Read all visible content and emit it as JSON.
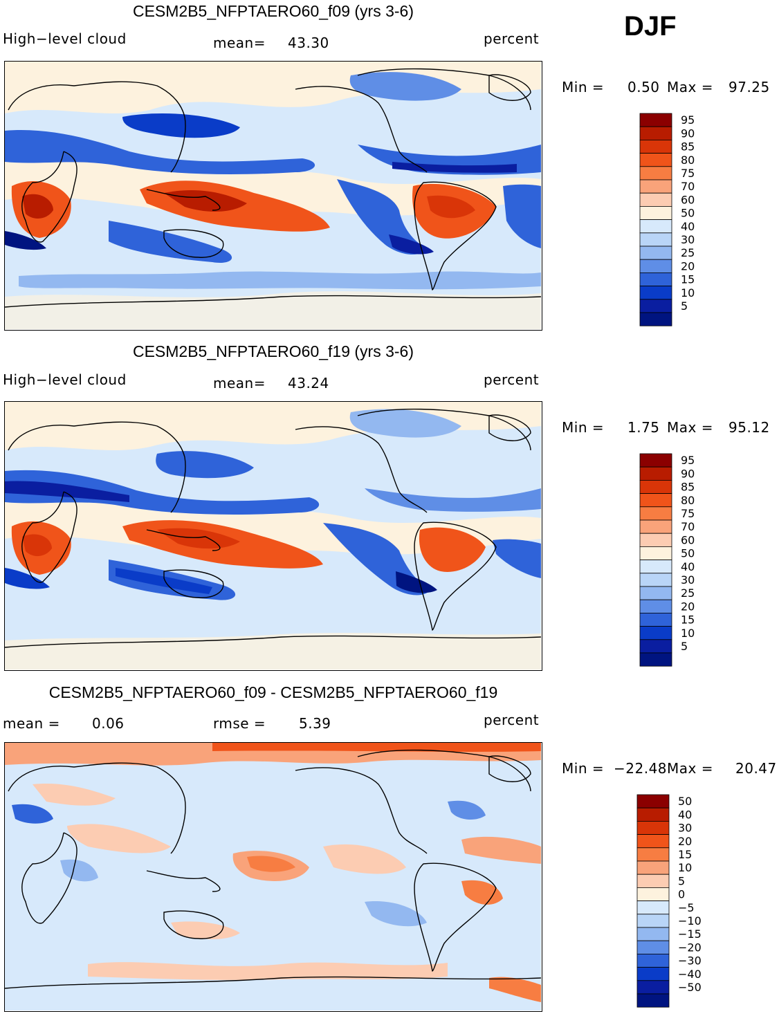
{
  "season": "DJF",
  "panels": [
    {
      "title": "CESM2B5_NFPTAERO60_f09 (yrs 3-6)",
      "left_label": "High−level cloud",
      "stat1_label": "mean=",
      "stat1_value": "43.30",
      "stat2_label": "",
      "stat2_value": "",
      "units": "percent",
      "min_label": "Min =",
      "min_value": "0.50",
      "max_label": "Max =",
      "max_value": "97.25",
      "colorbar": {
        "levels": [
          "95",
          "90",
          "85",
          "80",
          "75",
          "70",
          "60",
          "50",
          "40",
          "30",
          "25",
          "20",
          "15",
          "10",
          "5"
        ],
        "colors": [
          "#8b0000",
          "#b81c00",
          "#d93508",
          "#f0541a",
          "#f77d42",
          "#f9a37a",
          "#fcccb2",
          "#fdf2de",
          "#d7e9fb",
          "#b9d5f7",
          "#93b8f0",
          "#5f8ee6",
          "#2f63d9",
          "#0a3cc8",
          "#0a1ea0",
          "#001480"
        ]
      }
    },
    {
      "title": "CESM2B5_NFPTAERO60_f19 (yrs 3-6)",
      "left_label": "High−level cloud",
      "stat1_label": "mean=",
      "stat1_value": "43.24",
      "stat2_label": "",
      "stat2_value": "",
      "units": "percent",
      "min_label": "Min =",
      "min_value": "1.75",
      "max_label": "Max =",
      "max_value": "95.12",
      "colorbar": {
        "levels": [
          "95",
          "90",
          "85",
          "80",
          "75",
          "70",
          "60",
          "50",
          "40",
          "30",
          "25",
          "20",
          "15",
          "10",
          "5"
        ],
        "colors": [
          "#8b0000",
          "#b81c00",
          "#d93508",
          "#f0541a",
          "#f77d42",
          "#f9a37a",
          "#fcccb2",
          "#fdf2de",
          "#d7e9fb",
          "#b9d5f7",
          "#93b8f0",
          "#5f8ee6",
          "#2f63d9",
          "#0a3cc8",
          "#0a1ea0",
          "#001480"
        ]
      }
    },
    {
      "title": "CESM2B5_NFPTAERO60_f09 - CESM2B5_NFPTAERO60_f19",
      "left_label": "mean =",
      "stat1_label": "",
      "stat1_value": "0.06",
      "stat2_label": "rmse =",
      "stat2_value": "5.39",
      "units": "percent",
      "min_label": "Min =",
      "min_value": "−22.48",
      "max_label": "Max =",
      "max_value": "20.47",
      "colorbar": {
        "levels": [
          "50",
          "40",
          "30",
          "20",
          "15",
          "10",
          "5",
          "0",
          "−5",
          "−10",
          "−15",
          "−20",
          "−30",
          "−40",
          "−50"
        ],
        "colors": [
          "#8b0000",
          "#b81c00",
          "#d93508",
          "#f0541a",
          "#f77d42",
          "#f9a37a",
          "#fcccb2",
          "#fdf2de",
          "#d7e9fb",
          "#b9d5f7",
          "#93b8f0",
          "#5f8ee6",
          "#2f63d9",
          "#0a3cc8",
          "#0a1ea0",
          "#001480"
        ]
      }
    }
  ]
}
